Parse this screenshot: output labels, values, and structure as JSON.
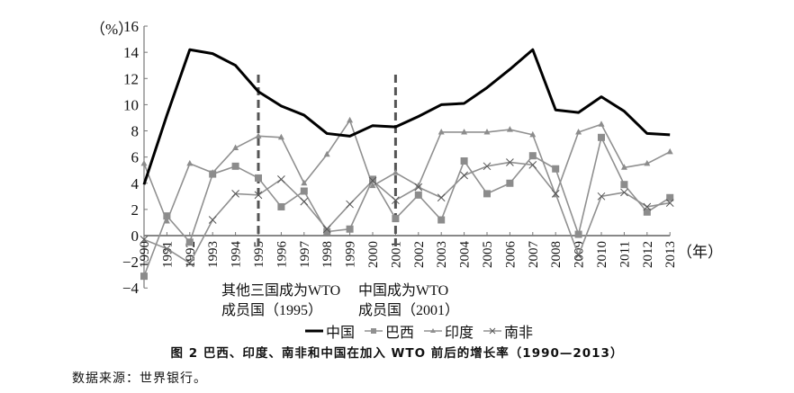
{
  "chart_data": {
    "type": "line",
    "title": "图 2   巴西、印度、南非和中国在加入 WTO 前后的增长率（1990—2013）",
    "xlabel": "（年）",
    "ylabel": "（%）",
    "ylim": [
      -4,
      16
    ],
    "yticks": [
      -4,
      -2,
      0,
      2,
      4,
      6,
      8,
      10,
      12,
      14,
      16
    ],
    "grid": false,
    "legend_position": "bottom",
    "x": [
      1990,
      1991,
      1992,
      1993,
      1994,
      1995,
      1996,
      1997,
      1998,
      1999,
      2000,
      2001,
      2002,
      2003,
      2004,
      2005,
      2006,
      2007,
      2008,
      2009,
      2010,
      2011,
      2012,
      2013
    ],
    "series": [
      {
        "name": "中国",
        "marker": "none",
        "color": "#000000",
        "values": [
          3.9,
          9.2,
          14.2,
          13.9,
          13.0,
          11.0,
          9.9,
          9.2,
          7.8,
          7.6,
          8.4,
          8.3,
          9.1,
          10.0,
          10.1,
          11.3,
          12.7,
          14.2,
          9.6,
          9.4,
          10.6,
          9.5,
          7.8,
          7.7
        ]
      },
      {
        "name": "巴西",
        "marker": "square",
        "color": "#909090",
        "values": [
          -3.1,
          1.5,
          -0.5,
          4.7,
          5.3,
          4.4,
          2.2,
          3.4,
          0.3,
          0.5,
          4.3,
          1.3,
          3.1,
          1.2,
          5.7,
          3.2,
          4.0,
          6.1,
          5.1,
          0.1,
          7.5,
          3.9,
          1.8,
          2.9
        ]
      },
      {
        "name": "印度",
        "marker": "triangle",
        "color": "#909090",
        "values": [
          5.5,
          1.1,
          5.5,
          4.8,
          6.7,
          7.6,
          7.5,
          4.0,
          6.2,
          8.8,
          3.8,
          4.8,
          3.8,
          7.9,
          7.9,
          7.9,
          8.1,
          7.7,
          3.1,
          7.9,
          8.5,
          5.2,
          5.5,
          6.4
        ]
      },
      {
        "name": "南非",
        "marker": "x",
        "color": "#909090",
        "values": [
          -0.3,
          -1.0,
          -2.1,
          1.2,
          3.2,
          3.1,
          4.3,
          2.6,
          0.5,
          2.4,
          4.2,
          2.7,
          3.7,
          2.9,
          4.6,
          5.3,
          5.6,
          5.4,
          3.2,
          -1.5,
          3.0,
          3.3,
          2.2,
          2.5
        ]
      }
    ],
    "annotations": [
      {
        "x": 1995,
        "style": "dashed vertical line",
        "text": "其他三国成为WTO成员国（1995）"
      },
      {
        "x": 2001,
        "style": "dashed vertical line",
        "text": "中国成为WTO成员国（2001）"
      }
    ],
    "source": "数据来源：世界银行。"
  },
  "labels": {
    "y_unit": "（%）",
    "x_unit": "（年）",
    "annot_1995_line1": "其他三国成为WTO",
    "annot_1995_line2": "成员国（1995）",
    "annot_2001_line1": "中国成为WTO",
    "annot_2001_line2": "成员国（2001）",
    "legend": [
      "中国",
      "巴西",
      "印度",
      "南非"
    ],
    "caption": "图 2   巴西、印度、南非和中国在加入 WTO 前后的增长率（1990—2013）",
    "source": "数据来源：世界银行。"
  }
}
